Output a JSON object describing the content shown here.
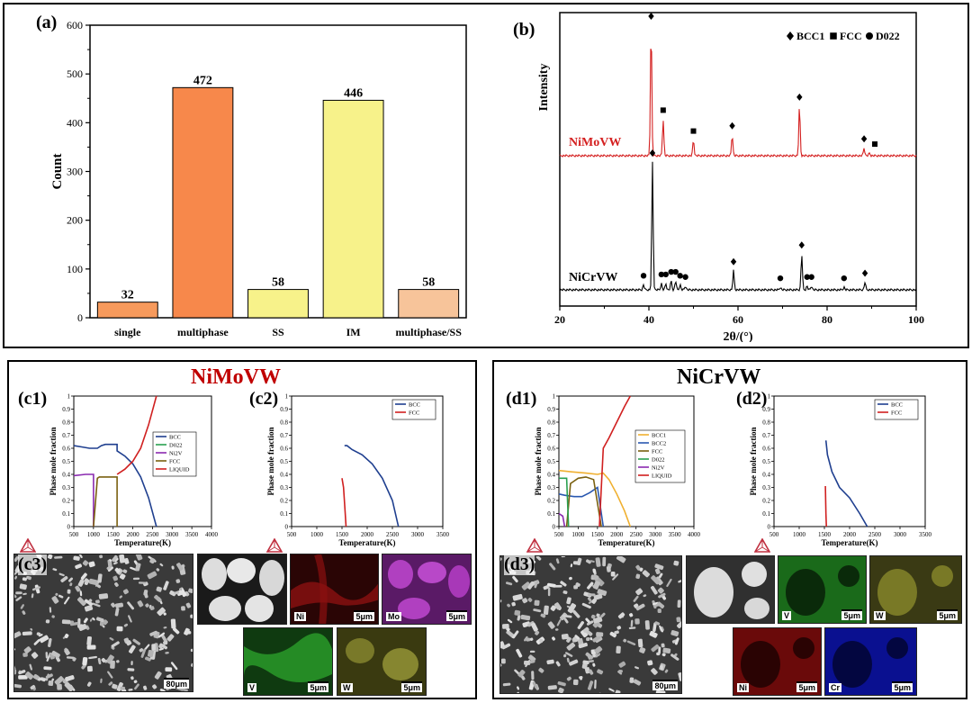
{
  "panels": {
    "a": {
      "label": "(a)"
    },
    "b": {
      "label": "(b)"
    },
    "c1": {
      "label": "(c1)"
    },
    "c2": {
      "label": "(c2)"
    },
    "c3": {
      "label": "(c3)"
    },
    "d1": {
      "label": "(d1)"
    },
    "d2": {
      "label": "(d2)"
    },
    "d3": {
      "label": "(d3)"
    }
  },
  "group_titles": {
    "c": "NiMoVW",
    "d": "NiCrVW"
  },
  "colors": {
    "nimovw_title": "#c00000",
    "nicrvw_title": "#000000"
  },
  "micrographs": {
    "c3_main": {
      "scale": "80μm"
    },
    "c3_bse": {},
    "c3_ni": {
      "element": "Ni",
      "scale": "5μm",
      "color": "#8b1010"
    },
    "c3_mo": {
      "element": "Mo",
      "scale": "5μm",
      "color": "#9a2aa8"
    },
    "c3_v": {
      "element": "V",
      "scale": "5μm",
      "color": "#1f8a1f"
    },
    "c3_w": {
      "element": "W",
      "scale": "5μm",
      "color": "#8a8a22"
    },
    "d3_main": {
      "scale": "80μm"
    },
    "d3_bse": {},
    "d3_v": {
      "element": "V",
      "scale": "5μm",
      "color": "#1f8a1f"
    },
    "d3_w": {
      "element": "W",
      "scale": "5μm",
      "color": "#8a8a22"
    },
    "d3_ni": {
      "element": "Ni",
      "scale": "5μm",
      "color": "#8b1010"
    },
    "d3_cr": {
      "element": "Cr",
      "scale": "5μm",
      "color": "#1a2ab0"
    }
  },
  "chart_data": [
    {
      "id": "a",
      "type": "bar",
      "categories": [
        "single",
        "multiphase",
        "SS",
        "IM",
        "multiphase/SS"
      ],
      "values": [
        32,
        472,
        58,
        446,
        58
      ],
      "data_labels": [
        "32",
        "472",
        "58",
        "446",
        "58"
      ],
      "colors": [
        "#f79a5c",
        "#f7884b",
        "#f7f28a",
        "#f7f28a",
        "#f7c49a"
      ],
      "ylabel": "Count",
      "xlabel": "",
      "ylim": [
        0,
        600
      ],
      "yticks": [
        0,
        100,
        200,
        300,
        400,
        500,
        600
      ]
    },
    {
      "id": "b",
      "type": "line",
      "xlabel": "2θ/(°)",
      "ylabel": "Intensity",
      "xlim": [
        20,
        100
      ],
      "xticks": [
        20,
        40,
        60,
        80,
        100
      ],
      "legend": [
        {
          "marker": "diamond",
          "label": "BCC1"
        },
        {
          "marker": "square",
          "label": "FCC"
        },
        {
          "marker": "circle",
          "label": "D022"
        }
      ],
      "legend_position": "top-right",
      "series": [
        {
          "name": "NiMoVW",
          "color": "#d42020",
          "peaks": [
            {
              "x": 40.5,
              "h": 1.0,
              "m": "diamond"
            },
            {
              "x": 43.2,
              "h": 0.28,
              "m": "square"
            },
            {
              "x": 50.0,
              "h": 0.12,
              "m": "square"
            },
            {
              "x": 58.7,
              "h": 0.16,
              "m": "diamond"
            },
            {
              "x": 73.8,
              "h": 0.38,
              "m": "diamond"
            },
            {
              "x": 88.3,
              "h": 0.06,
              "m": "diamond"
            },
            {
              "x": 89.5,
              "h": 0.02,
              "m": "square"
            }
          ]
        },
        {
          "name": "NiCrVW",
          "color": "#000000",
          "peaks": [
            {
              "x": 38.8,
              "h": 0.04,
              "m": "circle"
            },
            {
              "x": 40.8,
              "h": 1.0,
              "m": "diamond"
            },
            {
              "x": 42.8,
              "h": 0.05,
              "m": "circle"
            },
            {
              "x": 43.8,
              "h": 0.05,
              "m": "circle"
            },
            {
              "x": 45.0,
              "h": 0.07,
              "m": "circle"
            },
            {
              "x": 46.0,
              "h": 0.07,
              "m": "circle"
            },
            {
              "x": 47.0,
              "h": 0.04,
              "m": "circle"
            },
            {
              "x": 48.2,
              "h": 0.03,
              "m": "circle"
            },
            {
              "x": 59.0,
              "h": 0.15,
              "m": "diamond"
            },
            {
              "x": 69.5,
              "h": 0.02,
              "m": "circle"
            },
            {
              "x": 74.3,
              "h": 0.28,
              "m": "diamond"
            },
            {
              "x": 75.5,
              "h": 0.03,
              "m": "circle"
            },
            {
              "x": 76.5,
              "h": 0.03,
              "m": "circle"
            },
            {
              "x": 83.8,
              "h": 0.02,
              "m": "circle"
            },
            {
              "x": 88.5,
              "h": 0.06,
              "m": "diamond"
            }
          ]
        }
      ]
    },
    {
      "id": "c1",
      "type": "line",
      "xlabel": "Temperature(K)",
      "ylabel": "Phase mole fraction",
      "xlim": [
        500,
        4000
      ],
      "ylim": [
        0,
        1
      ],
      "xticks": [
        500,
        1000,
        1500,
        2000,
        2500,
        3000,
        3500,
        4000
      ],
      "yticks": [
        0,
        0.1,
        0.2,
        0.3,
        0.4,
        0.5,
        0.6,
        0.7,
        0.8,
        0.9,
        1.0
      ],
      "legend_position": "center-right",
      "series": [
        {
          "name": "BCC",
          "color": "#1f3f8f",
          "x": [
            500,
            700,
            900,
            1100,
            1200,
            1300,
            1600,
            1600,
            1800,
            2000,
            2200,
            2400,
            2600
          ],
          "y": [
            0.62,
            0.61,
            0.6,
            0.6,
            0.62,
            0.63,
            0.63,
            0.58,
            0.54,
            0.48,
            0.38,
            0.22,
            0.0
          ]
        },
        {
          "name": "D022",
          "color": "#2aa050",
          "x": [
            1000,
            1000
          ],
          "y": [
            0,
            0
          ]
        },
        {
          "name": "Ni2V",
          "color": "#8a2ab0",
          "x": [
            500,
            800,
            1000,
            1000
          ],
          "y": [
            0.39,
            0.4,
            0.4,
            0
          ]
        },
        {
          "name": "FCC",
          "color": "#7a6010",
          "x": [
            1000,
            1100,
            1150,
            1600,
            1600
          ],
          "y": [
            0,
            0.37,
            0.38,
            0.38,
            0
          ]
        },
        {
          "name": "LIQUID",
          "color": "#d02020",
          "x": [
            1600,
            1800,
            2000,
            2200,
            2400,
            2600
          ],
          "y": [
            0.4,
            0.44,
            0.5,
            0.6,
            0.78,
            1.0
          ]
        }
      ]
    },
    {
      "id": "c2",
      "type": "line",
      "xlabel": "Temperature(K)",
      "ylabel": "Phase mole fraction",
      "xlim": [
        500,
        3500
      ],
      "ylim": [
        0,
        1
      ],
      "xticks": [
        500,
        1000,
        1500,
        2000,
        2500,
        3000,
        3500
      ],
      "yticks": [
        0,
        0.1,
        0.2,
        0.3,
        0.4,
        0.5,
        0.6,
        0.7,
        0.8,
        0.9,
        1.0
      ],
      "legend_position": "top-right",
      "series": [
        {
          "name": "BCC",
          "color": "#1f3f8f",
          "x": [
            1550,
            1600,
            1700,
            1900,
            2100,
            2300,
            2500,
            2620
          ],
          "y": [
            0.62,
            0.62,
            0.59,
            0.55,
            0.48,
            0.37,
            0.2,
            0.0
          ]
        },
        {
          "name": "FCC",
          "color": "#d02020",
          "x": [
            1500,
            1530,
            1560,
            1580
          ],
          "y": [
            0.37,
            0.3,
            0.12,
            0.0
          ]
        }
      ]
    },
    {
      "id": "d1",
      "type": "line",
      "xlabel": "Temperature(K)",
      "ylabel": "Phase mole fraction",
      "xlim": [
        500,
        4000
      ],
      "ylim": [
        0,
        1
      ],
      "xticks": [
        500,
        1000,
        1500,
        2000,
        2500,
        3000,
        3500,
        4000
      ],
      "yticks": [
        0,
        0.1,
        0.2,
        0.3,
        0.4,
        0.5,
        0.6,
        0.7,
        0.8,
        0.9,
        1.0
      ],
      "legend_position": "center-right",
      "series": [
        {
          "name": "BCC1",
          "color": "#f0b030",
          "x": [
            500,
            800,
            1200,
            1500,
            1650,
            1800,
            2000,
            2200,
            2350
          ],
          "y": [
            0.43,
            0.42,
            0.41,
            0.4,
            0.41,
            0.36,
            0.25,
            0.12,
            0.0
          ]
        },
        {
          "name": "BCC2",
          "color": "#2a58b0",
          "x": [
            500,
            650,
            900,
            1100,
            1300,
            1500,
            1650
          ],
          "y": [
            0.25,
            0.24,
            0.23,
            0.23,
            0.26,
            0.3,
            0.0
          ]
        },
        {
          "name": "FCC",
          "color": "#7a6010",
          "x": [
            700,
            800,
            1000,
            1200,
            1400,
            1600
          ],
          "y": [
            0.0,
            0.33,
            0.37,
            0.38,
            0.36,
            0.0
          ]
        },
        {
          "name": "D022",
          "color": "#2aa050",
          "x": [
            500,
            700,
            750
          ],
          "y": [
            0.37,
            0.37,
            0.0
          ]
        },
        {
          "name": "Ni2V",
          "color": "#8a2ab0",
          "x": [
            500,
            600,
            650
          ],
          "y": [
            0.1,
            0.08,
            0.0
          ]
        },
        {
          "name": "LIQUID",
          "color": "#d02020",
          "x": [
            1550,
            1650,
            1800,
            2000,
            2200,
            2350
          ],
          "y": [
            0.0,
            0.6,
            0.68,
            0.8,
            0.92,
            1.0
          ]
        }
      ]
    },
    {
      "id": "d2",
      "type": "line",
      "xlabel": "Temperature(K)",
      "ylabel": "Phase mole fraction",
      "xlim": [
        500,
        3500
      ],
      "ylim": [
        0,
        1
      ],
      "xticks": [
        500,
        1000,
        1500,
        2000,
        2500,
        3000,
        3500
      ],
      "yticks": [
        0,
        0.1,
        0.2,
        0.3,
        0.4,
        0.5,
        0.6,
        0.7,
        0.8,
        0.9,
        1.0
      ],
      "legend_position": "top-right",
      "series": [
        {
          "name": "BCC",
          "color": "#1f3f8f",
          "x": [
            1530,
            1560,
            1650,
            1800,
            2000,
            2200,
            2350
          ],
          "y": [
            0.66,
            0.55,
            0.42,
            0.3,
            0.22,
            0.1,
            0.0
          ]
        },
        {
          "name": "FCC",
          "color": "#d02020",
          "x": [
            1520,
            1530,
            1540
          ],
          "y": [
            0.31,
            0.1,
            0.0
          ]
        }
      ]
    }
  ]
}
